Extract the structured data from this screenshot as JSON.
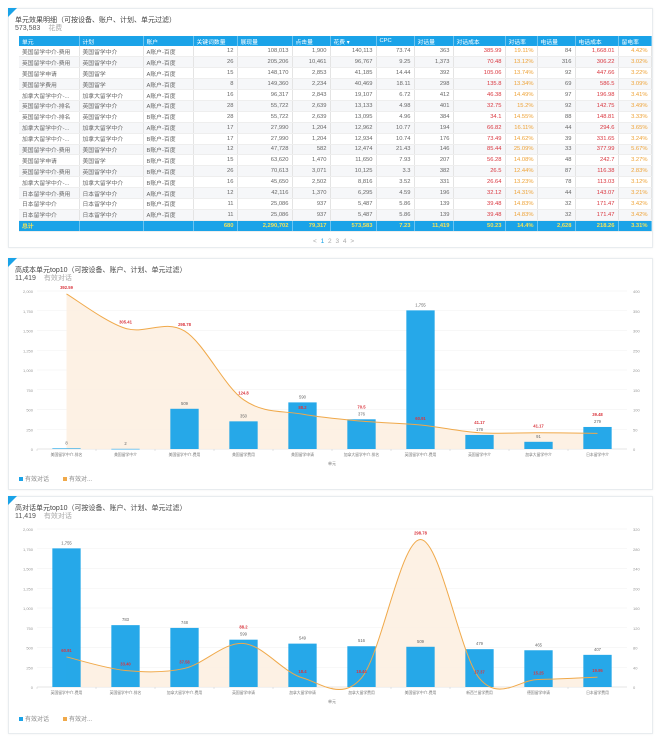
{
  "table_panel": {
    "title": "单元效果明细（可按设备、账户、计划、单元过滤）",
    "metric_value": "573,583",
    "metric_unit": "花费",
    "columns": [
      "单元",
      "计划",
      "账户",
      "关键词数量",
      "展现量",
      "点击量",
      "花费 ▾",
      "CPC",
      "对话量",
      "对话成本",
      "对话率",
      "电话量",
      "电话成本",
      "留电率"
    ],
    "rows": [
      [
        "美国留学中介-费用",
        "美国留学中介",
        "A账户-百度",
        "12",
        "108,013",
        "1,900",
        "140,113",
        "73.74",
        "363",
        "385.99",
        "19.11%",
        "84",
        "1,668.01",
        "4.42%"
      ],
      [
        "英国留学中介-费用",
        "英国留学中介",
        "A账户-百度",
        "26",
        "205,206",
        "10,461",
        "96,767",
        "9.25",
        "1,373",
        "70.48",
        "13.12%",
        "316",
        "306.22",
        "3.02%"
      ],
      [
        "美国留学申请",
        "美国留学",
        "A账户-百度",
        "15",
        "148,170",
        "2,853",
        "41,185",
        "14.44",
        "392",
        "105.06",
        "13.74%",
        "92",
        "447.66",
        "3.22%"
      ],
      [
        "美国留学费用",
        "美国留学",
        "A账户-百度",
        "8",
        "149,360",
        "2,234",
        "40,469",
        "18.11",
        "298",
        "135.8",
        "13.34%",
        "69",
        "586.5",
        "3.09%"
      ],
      [
        "加拿大留学中介-...",
        "加拿大留学中介",
        "A账户-百度",
        "16",
        "96,317",
        "2,843",
        "19,107",
        "6.72",
        "412",
        "46.38",
        "14.49%",
        "97",
        "196.98",
        "3.41%"
      ],
      [
        "英国留学中介-排名",
        "英国留学中介",
        "A账户-百度",
        "28",
        "55,722",
        "2,639",
        "13,133",
        "4.98",
        "401",
        "32.75",
        "15.2%",
        "92",
        "142.75",
        "3.49%"
      ],
      [
        "英国留学中介-排名",
        "英国留学中介",
        "B账户-百度",
        "28",
        "55,722",
        "2,639",
        "13,095",
        "4.96",
        "384",
        "34.1",
        "14.55%",
        "88",
        "148.81",
        "3.33%"
      ],
      [
        "加拿大留学中介-...",
        "加拿大留学中介",
        "A账户-百度",
        "17",
        "27,990",
        "1,204",
        "12,962",
        "10.77",
        "194",
        "66.82",
        "16.11%",
        "44",
        "294.6",
        "3.65%"
      ],
      [
        "加拿大留学中介-...",
        "加拿大留学中介",
        "B账户-百度",
        "17",
        "27,990",
        "1,204",
        "12,934",
        "10.74",
        "176",
        "73.49",
        "14.62%",
        "39",
        "331.65",
        "3.24%"
      ],
      [
        "美国留学中介-费用",
        "美国留学中介",
        "B账户-百度",
        "12",
        "47,728",
        "582",
        "12,474",
        "21.43",
        "146",
        "85.44",
        "25.09%",
        "33",
        "377.99",
        "5.67%"
      ],
      [
        "美国留学申请",
        "美国留学",
        "B账户-百度",
        "15",
        "63,620",
        "1,470",
        "11,650",
        "7.93",
        "207",
        "56.28",
        "14.08%",
        "48",
        "242.7",
        "3.27%"
      ],
      [
        "英国留学中介-费用",
        "英国留学中介",
        "B账户-百度",
        "26",
        "70,613",
        "3,071",
        "10,125",
        "3.3",
        "382",
        "26.5",
        "12.44%",
        "87",
        "116.38",
        "2.83%"
      ],
      [
        "加拿大留学中介-...",
        "加拿大留学中介",
        "B账户-百度",
        "16",
        "45,650",
        "2,502",
        "8,816",
        "3.52",
        "331",
        "26.64",
        "13.23%",
        "78",
        "113.03",
        "3.12%"
      ],
      [
        "日本留学中介-费用",
        "日本留学中介",
        "A账户-百度",
        "12",
        "42,116",
        "1,370",
        "6,295",
        "4.59",
        "196",
        "32.12",
        "14.31%",
        "44",
        "143.07",
        "3.21%"
      ],
      [
        "日本留学中介",
        "日本留学中介",
        "B账户-百度",
        "11",
        "25,086",
        "937",
        "5,487",
        "5.86",
        "139",
        "39.48",
        "14.83%",
        "32",
        "171.47",
        "3.42%"
      ],
      [
        "日本留学中介",
        "日本留学中介",
        "A账户-百度",
        "11",
        "25,086",
        "937",
        "5,487",
        "5.86",
        "139",
        "39.48",
        "14.83%",
        "32",
        "171.47",
        "3.42%"
      ]
    ],
    "total": [
      "总计",
      "",
      "",
      "680",
      "2,290,702",
      "79,317",
      "573,583",
      "7.23",
      "11,419",
      "50.23",
      "14.4%",
      "2,628",
      "218.26",
      "3.31%"
    ],
    "pagination": {
      "prev": "<",
      "pages": [
        "1",
        "2",
        "3",
        "4"
      ],
      "next": ">",
      "current": "1"
    }
  },
  "chart_data": [
    {
      "type": "bar",
      "title": "高成本单元top10（可按设备、账户、计划、单元过滤）",
      "metric_value": "11,419",
      "metric_unit": "有效对话",
      "xlabel": "单元",
      "categories": [
        "美国留学中介-排名",
        "美国留学中介",
        "美国留学中介-费用",
        "美国留学费用",
        "美国留学申请",
        "加拿大留学中介-排名",
        "英国留学中介-费用",
        "英国留学中介",
        "加拿大留学中介",
        "日本留学中介"
      ],
      "series": [
        {
          "name": "有效对话",
          "type": "bar",
          "axis": "left",
          "values": [
            8,
            2,
            509,
            350,
            590,
            376,
            1755,
            178,
            91,
            279
          ]
        },
        {
          "name": "有效对...",
          "type": "line",
          "axis": "right",
          "values": [
            392.59,
            305.41,
            298.78,
            124.8,
            88.2,
            70.5,
            60.91,
            41.17,
            41.17,
            39.48
          ]
        }
      ],
      "ylim_left": [
        0,
        2000
      ],
      "yticks_left": [
        "0",
        "250",
        "500",
        "750",
        "1,000",
        "1,250",
        "1,500",
        "1,750",
        "2,000"
      ],
      "ylim_right": [
        0,
        400
      ],
      "yticks_right": [
        "0",
        "50",
        "100",
        "150",
        "200",
        "250",
        "300",
        "350",
        "400"
      ],
      "bar_labels": [
        "8",
        "2",
        "509",
        "350",
        "590",
        "376",
        "1,755",
        "178",
        "91",
        "279"
      ],
      "line_labels": [
        "392.59",
        "305.41",
        "298.78",
        "124.8",
        "88.2",
        "70.5",
        "60.91",
        "41.17",
        "41.17",
        "39.48"
      ],
      "legend": [
        "有效对话",
        "有效对..."
      ],
      "legend_position": "bottom-left",
      "grid": true
    },
    {
      "type": "bar",
      "title": "高对话单元top10（可按设备、账户、计划、单元过滤）",
      "metric_value": "11,419",
      "metric_unit": "有效对话",
      "xlabel": "单元",
      "categories": [
        "英国留学中介-费用",
        "英国留学中介-排名",
        "加拿大留学中介-费用",
        "英国留学申请",
        "加拿大留学申请",
        "加拿大留学费用",
        "美国留学中介-费用",
        "新西兰留学费用",
        "德国留学申请",
        "日本留学费用"
      ],
      "series": [
        {
          "name": "有效对话",
          "type": "bar",
          "axis": "left",
          "values": [
            1755,
            783,
            748,
            599,
            549,
            516,
            509,
            479,
            465,
            407
          ]
        },
        {
          "name": "有效对...",
          "type": "line",
          "axis": "right",
          "values": [
            60.91,
            33.4,
            37.58,
            88.2,
            18.4,
            18.44,
            298.78,
            17.37,
            15.25,
            19.95
          ]
        }
      ],
      "ylim_left": [
        0,
        2000
      ],
      "yticks_left": [
        "0",
        "250",
        "500",
        "750",
        "1,000",
        "1,250",
        "1,500",
        "1,750",
        "2,000"
      ],
      "ylim_right": [
        0,
        320
      ],
      "yticks_right": [
        "0",
        "40",
        "80",
        "120",
        "160",
        "200",
        "240",
        "280",
        "320"
      ],
      "bar_labels": [
        "1,755",
        "783",
        "748",
        "599",
        "549",
        "516",
        "509",
        "479",
        "465",
        "407"
      ],
      "line_labels": [
        "60.91",
        "33.40",
        "37.58",
        "88.2",
        "18.4",
        "18.44",
        "298.78",
        "17.37",
        "15.25",
        "19.95"
      ],
      "legend": [
        "有效对话",
        "有效对..."
      ],
      "legend_position": "bottom-left",
      "grid": true
    }
  ],
  "colors": {
    "bar": "#1aa3e8",
    "line": "#f0a94a",
    "area": "#fdf1e3",
    "cost": "#d9363e",
    "rate": "#eea236",
    "total_text": "#f3e35a"
  }
}
